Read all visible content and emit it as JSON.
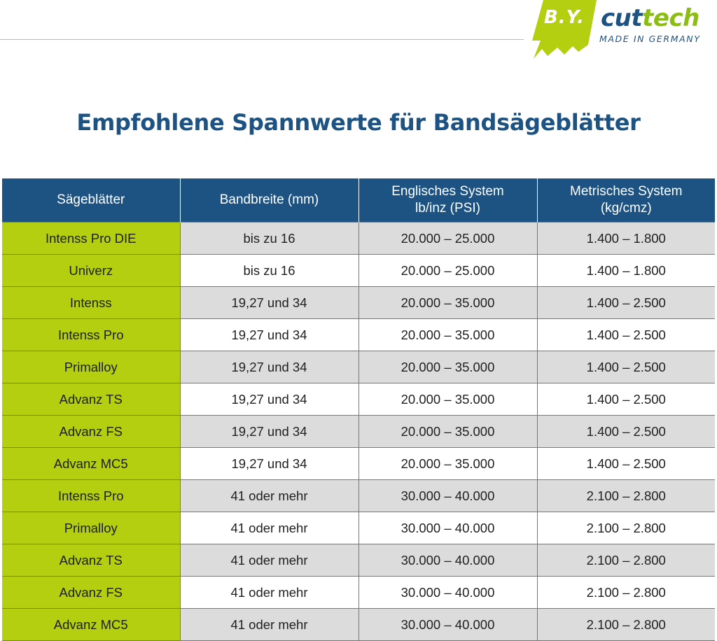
{
  "logo": {
    "badge_text": "B.Y.",
    "brand_part1": "cut",
    "brand_part2": "tech",
    "tagline": "MADE IN GERMANY",
    "colors": {
      "blue": "#1d5383",
      "green": "#8bbd14",
      "badge": "#b3cf10"
    }
  },
  "title": "Empfohlene Spannwerte für Bandsägeblätter",
  "table": {
    "headers": [
      {
        "line1": "Sägeblätter",
        "line2": ""
      },
      {
        "line1": "Bandbreite (mm)",
        "line2": ""
      },
      {
        "line1": "Englisches System",
        "line2": "lb/inz (PSI)"
      },
      {
        "line1": "Metrisches System",
        "line2": "(kg/cmz)"
      }
    ],
    "rows": [
      {
        "blade": "Intenss Pro DIE",
        "width": "bis zu 16",
        "psi": "20.000 – 25.000",
        "metric": "1.400 – 1.800"
      },
      {
        "blade": "Univerz",
        "width": "bis zu 16",
        "psi": "20.000 – 25.000",
        "metric": "1.400 – 1.800"
      },
      {
        "blade": "Intenss",
        "width": "19,27 und 34",
        "psi": "20.000 – 35.000",
        "metric": "1.400 – 2.500"
      },
      {
        "blade": "Intenss Pro",
        "width": "19,27 und 34",
        "psi": "20.000 – 35.000",
        "metric": "1.400 – 2.500"
      },
      {
        "blade": "Primalloy",
        "width": "19,27 und 34",
        "psi": "20.000 – 35.000",
        "metric": "1.400 – 2.500"
      },
      {
        "blade": "Advanz TS",
        "width": "19,27 und 34",
        "psi": "20.000 – 35.000",
        "metric": "1.400 – 2.500"
      },
      {
        "blade": "Advanz FS",
        "width": "19,27 und 34",
        "psi": "20.000 – 35.000",
        "metric": "1.400 – 2.500"
      },
      {
        "blade": "Advanz MC5",
        "width": "19,27 und 34",
        "psi": "20.000 – 35.000",
        "metric": "1.400 – 2.500"
      },
      {
        "blade": "Intenss Pro",
        "width": "41 oder mehr",
        "psi": "30.000 – 40.000",
        "metric": "2.100 – 2.800"
      },
      {
        "blade": "Primalloy",
        "width": "41 oder mehr",
        "psi": "30.000 – 40.000",
        "metric": "2.100 – 2.800"
      },
      {
        "blade": "Advanz TS",
        "width": "41 oder mehr",
        "psi": "30.000 – 40.000",
        "metric": "2.100 – 2.800"
      },
      {
        "blade": "Advanz FS",
        "width": "41 oder mehr",
        "psi": "30.000 – 40.000",
        "metric": "2.100 – 2.800"
      },
      {
        "blade": "Advanz MC5",
        "width": "41 oder mehr",
        "psi": "30.000 – 40.000",
        "metric": "2.100 – 2.800"
      }
    ]
  }
}
